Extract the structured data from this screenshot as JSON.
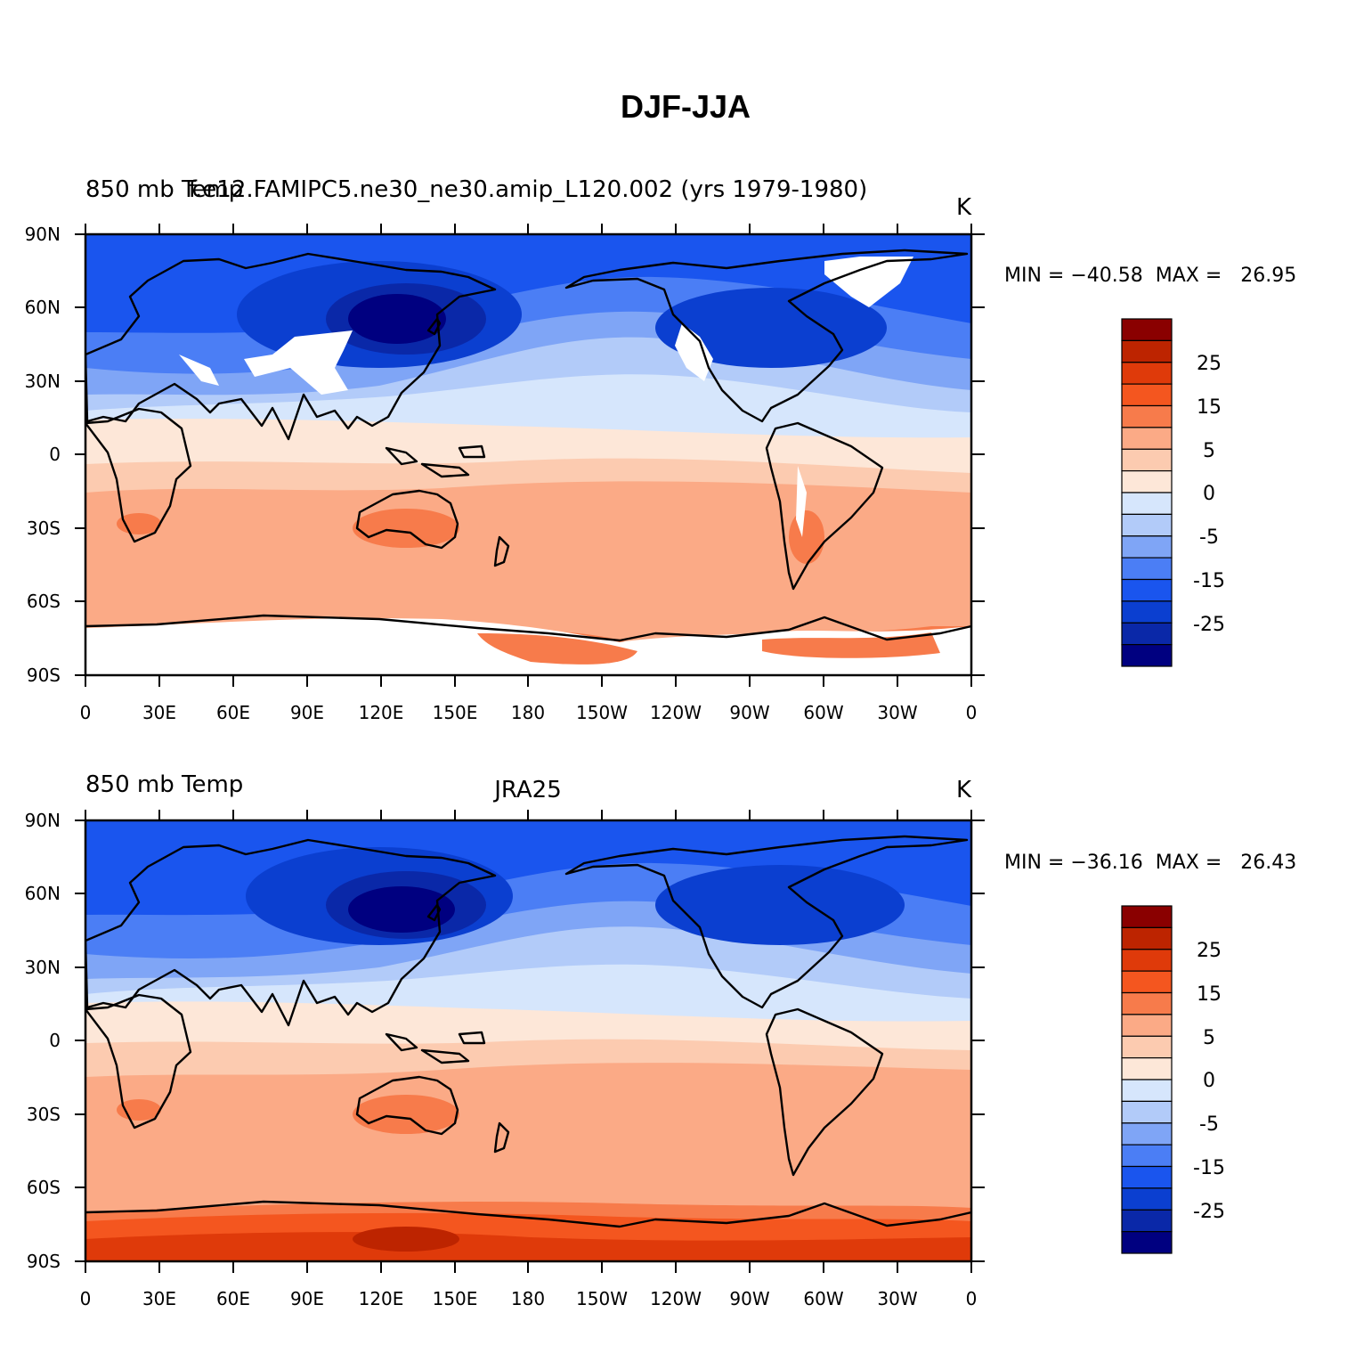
{
  "figure": {
    "title": "DJF-JJA"
  },
  "palette": [
    "#000080",
    "#0a28a8",
    "#0b3fd0",
    "#1a55ee",
    "#4b7ef5",
    "#7fa5f6",
    "#b2cbf9",
    "#d6e6fc",
    "#fde7d8",
    "#fccbb0",
    "#fbaa86",
    "#f77b4b",
    "#f4561f",
    "#df3a0a",
    "#bd2400",
    "#8a0000"
  ],
  "colorbar": {
    "labels": [
      "25",
      "15",
      "5",
      "0",
      "-5",
      "-15",
      "-25"
    ]
  },
  "axes": {
    "lon_ticks": [
      "0",
      "30E",
      "60E",
      "90E",
      "120E",
      "150E",
      "180",
      "150W",
      "120W",
      "90W",
      "60W",
      "30W",
      "0"
    ],
    "lat_ticks": [
      "90N",
      "60N",
      "30N",
      "0",
      "30S",
      "60S",
      "90S"
    ]
  },
  "panels": [
    {
      "left_label": "850 mb Temp",
      "center_label": "f.e12.FAMIPC5.ne30_ne30.amip_L120.002 (yrs 1979-1980)",
      "units": "K",
      "stats": "MIN = −40.58  MAX =   26.95"
    },
    {
      "left_label": "850 mb Temp",
      "center_label": "JRA25",
      "units": "K",
      "stats": "MIN = −36.16  MAX =   26.43"
    }
  ]
}
